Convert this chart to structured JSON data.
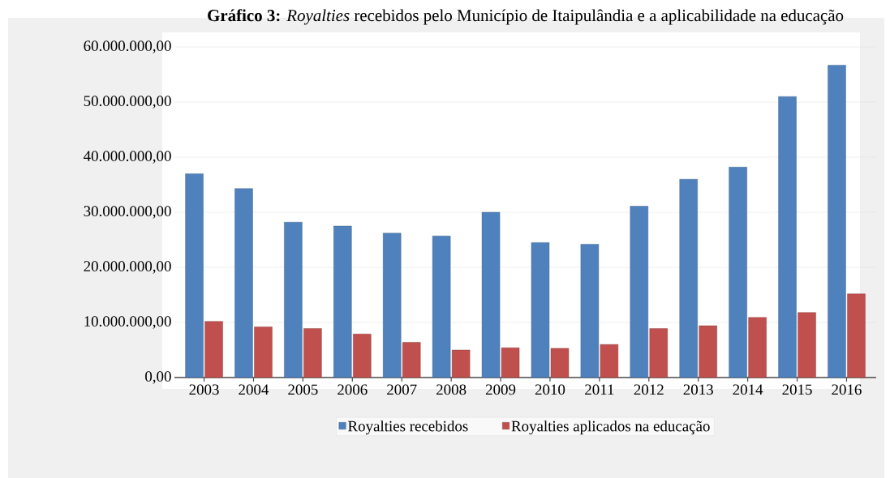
{
  "chart_data": {
    "type": "bar",
    "title": "**Gráfico 3:** *Royalties* recebidos pelo Município de Itaipulândia e a aplicabilidade na educação",
    "categories": [
      "2003",
      "2004",
      "2005",
      "2006",
      "2007",
      "2008",
      "2009",
      "2010",
      "2011",
      "2012",
      "2013",
      "2014",
      "2015",
      "2016"
    ],
    "series": [
      {
        "name": "Royalties recebidos",
        "color": "#4f81bd",
        "values": [
          37000000,
          34300000,
          28200000,
          27500000,
          26200000,
          25700000,
          30000000,
          24500000,
          24200000,
          31100000,
          36000000,
          38200000,
          51000000,
          56700000
        ]
      },
      {
        "name": "Royalties aplicados na educação",
        "color": "#c0504d",
        "values": [
          10200000,
          9200000,
          8900000,
          7900000,
          6400000,
          5000000,
          5400000,
          5300000,
          6000000,
          8900000,
          9400000,
          10900000,
          11800000,
          15200000
        ]
      }
    ],
    "ylim": [
      0,
      60000000
    ],
    "yticks": [
      {
        "value": 0,
        "label": "0,00"
      },
      {
        "value": 10000000,
        "label": "10.000.000,00"
      },
      {
        "value": 20000000,
        "label": "20.000.000,00"
      },
      {
        "value": 30000000,
        "label": "30.000.000,00"
      },
      {
        "value": 40000000,
        "label": "40.000.000,00"
      },
      {
        "value": 50000000,
        "label": "50.000.000,00"
      },
      {
        "value": 60000000,
        "label": "60.000.000,00"
      }
    ],
    "grid": "y",
    "legend": "bottom"
  }
}
